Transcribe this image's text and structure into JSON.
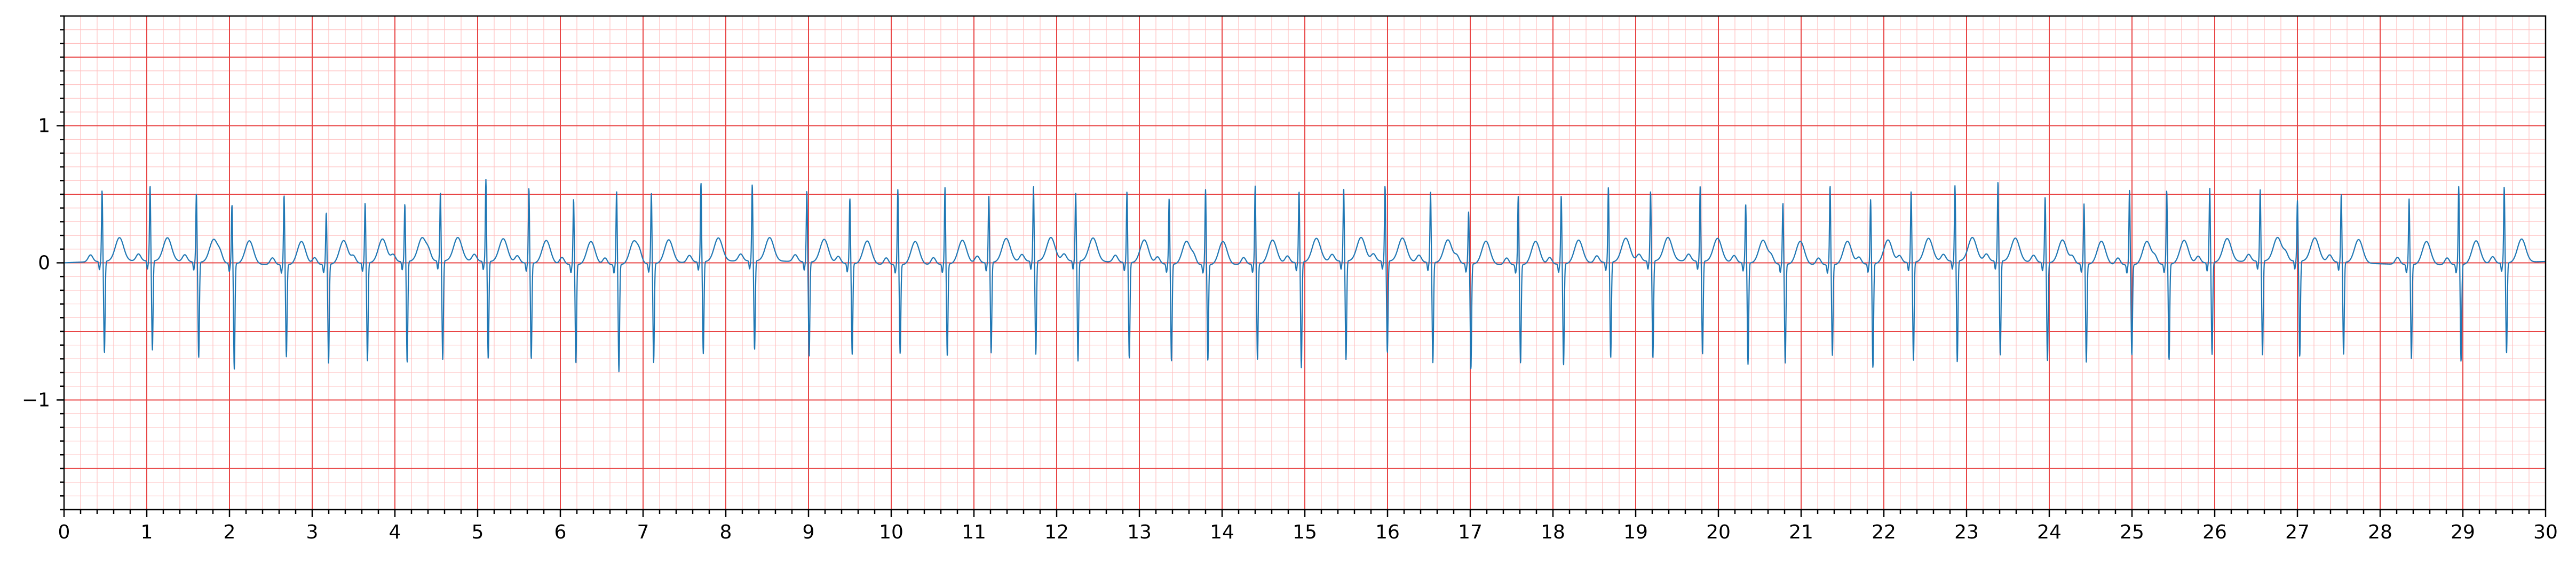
{
  "chart_data": {
    "type": "line",
    "title": "",
    "xlabel": "",
    "ylabel": "",
    "xlim": [
      0,
      30
    ],
    "ylim": [
      -1.8,
      1.8
    ],
    "x_major_ticks": [
      0,
      1,
      2,
      3,
      4,
      5,
      6,
      7,
      8,
      9,
      10,
      11,
      12,
      13,
      14,
      15,
      16,
      17,
      18,
      19,
      20,
      21,
      22,
      23,
      24,
      25,
      26,
      27,
      28,
      29,
      30
    ],
    "x_tick_labels": [
      "0",
      "1",
      "2",
      "3",
      "4",
      "5",
      "6",
      "7",
      "8",
      "9",
      "10",
      "11",
      "12",
      "13",
      "14",
      "15",
      "16",
      "17",
      "18",
      "19",
      "20",
      "21",
      "22",
      "23",
      "24",
      "25",
      "26",
      "27",
      "28",
      "29",
      "30"
    ],
    "x_minor_step": 0.2,
    "y_major_ticks": [
      -1,
      0,
      1
    ],
    "y_tick_labels": [
      "−1",
      "0",
      "1"
    ],
    "y_minor_step": 0.1,
    "grid": true,
    "colors": {
      "line": "#1f77b4",
      "major_grid": "#e84545",
      "minor_grid": "#ffc0c0"
    },
    "series": [
      {
        "beats": [
          {
            "t": 0.46,
            "r": 0.52,
            "s": -0.67
          },
          {
            "t": 1.04,
            "r": 0.55,
            "s": -0.65
          },
          {
            "t": 1.6,
            "r": 0.5,
            "s": -0.7
          },
          {
            "t": 2.03,
            "r": 0.43,
            "s": -0.77
          },
          {
            "t": 2.66,
            "r": 0.51,
            "s": -0.67
          },
          {
            "t": 3.17,
            "r": 0.38,
            "s": -0.72
          },
          {
            "t": 3.64,
            "r": 0.44,
            "s": -0.72
          },
          {
            "t": 4.12,
            "r": 0.42,
            "s": -0.74
          },
          {
            "t": 4.55,
            "r": 0.5,
            "s": -0.72
          },
          {
            "t": 5.1,
            "r": 0.6,
            "s": -0.71
          },
          {
            "t": 5.62,
            "r": 0.55,
            "s": -0.7
          },
          {
            "t": 6.16,
            "r": 0.48,
            "s": -0.72
          },
          {
            "t": 6.68,
            "r": 0.54,
            "s": -0.78
          },
          {
            "t": 7.1,
            "r": 0.52,
            "s": -0.72
          },
          {
            "t": 7.7,
            "r": 0.58,
            "s": -0.67
          },
          {
            "t": 8.32,
            "r": 0.56,
            "s": -0.65
          },
          {
            "t": 8.98,
            "r": 0.52,
            "s": -0.69
          },
          {
            "t": 9.5,
            "r": 0.48,
            "s": -0.66
          },
          {
            "t": 10.08,
            "r": 0.55,
            "s": -0.65
          },
          {
            "t": 10.65,
            "r": 0.56,
            "s": -0.67
          },
          {
            "t": 11.18,
            "r": 0.49,
            "s": -0.66
          },
          {
            "t": 11.72,
            "r": 0.55,
            "s": -0.68
          },
          {
            "t": 12.23,
            "r": 0.5,
            "s": -0.73
          },
          {
            "t": 12.85,
            "r": 0.52,
            "s": -0.7
          },
          {
            "t": 13.36,
            "r": 0.48,
            "s": -0.71
          },
          {
            "t": 13.8,
            "r": 0.55,
            "s": -0.7
          },
          {
            "t": 14.4,
            "r": 0.57,
            "s": -0.7
          },
          {
            "t": 14.93,
            "r": 0.52,
            "s": -0.77
          },
          {
            "t": 15.47,
            "r": 0.53,
            "s": -0.72
          },
          {
            "t": 15.97,
            "r": 0.55,
            "s": -0.67
          },
          {
            "t": 16.52,
            "r": 0.52,
            "s": -0.73
          },
          {
            "t": 16.98,
            "r": 0.38,
            "s": -0.77
          },
          {
            "t": 17.58,
            "r": 0.5,
            "s": -0.72
          },
          {
            "t": 18.1,
            "r": 0.5,
            "s": -0.74
          },
          {
            "t": 18.67,
            "r": 0.55,
            "s": -0.7
          },
          {
            "t": 19.18,
            "r": 0.51,
            "s": -0.71
          },
          {
            "t": 19.78,
            "r": 0.55,
            "s": -0.68
          },
          {
            "t": 20.33,
            "r": 0.43,
            "s": -0.74
          },
          {
            "t": 20.78,
            "r": 0.45,
            "s": -0.72
          },
          {
            "t": 21.35,
            "r": 0.58,
            "s": -0.66
          },
          {
            "t": 21.84,
            "r": 0.47,
            "s": -0.76
          },
          {
            "t": 22.33,
            "r": 0.52,
            "s": -0.72
          },
          {
            "t": 22.86,
            "r": 0.55,
            "s": -0.74
          },
          {
            "t": 23.38,
            "r": 0.58,
            "s": -0.69
          },
          {
            "t": 23.95,
            "r": 0.48,
            "s": -0.72
          },
          {
            "t": 24.42,
            "r": 0.44,
            "s": -0.72
          },
          {
            "t": 24.97,
            "r": 0.55,
            "s": -0.66
          },
          {
            "t": 25.42,
            "r": 0.54,
            "s": -0.7
          },
          {
            "t": 25.94,
            "r": 0.55,
            "s": -0.67
          },
          {
            "t": 26.55,
            "r": 0.52,
            "s": -0.69
          },
          {
            "t": 27.0,
            "r": 0.44,
            "s": -0.7
          },
          {
            "t": 27.53,
            "r": 0.5,
            "s": -0.67
          },
          {
            "t": 28.35,
            "r": 0.48,
            "s": -0.69
          },
          {
            "t": 28.95,
            "r": 0.57,
            "s": -0.71
          },
          {
            "t": 29.5,
            "r": 0.56,
            "s": -0.66
          }
        ]
      }
    ]
  }
}
